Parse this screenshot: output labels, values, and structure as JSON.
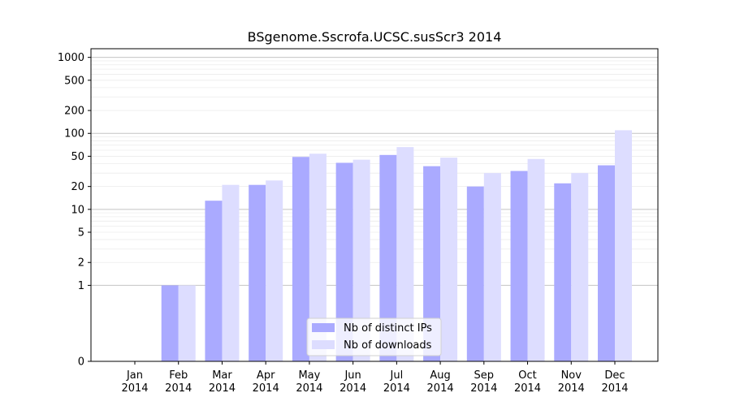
{
  "chart_data": {
    "type": "bar",
    "title": "BSgenome.Sscrofa.UCSC.susScr3 2014",
    "xlabel": "",
    "ylabel": "",
    "y_scale": "symlog",
    "ylim": [
      0,
      1300
    ],
    "y_ticks": [
      0,
      1,
      2,
      5,
      10,
      20,
      50,
      100,
      200,
      500,
      1000
    ],
    "categories": [
      [
        "Jan",
        "2014"
      ],
      [
        "Feb",
        "2014"
      ],
      [
        "Mar",
        "2014"
      ],
      [
        "Apr",
        "2014"
      ],
      [
        "May",
        "2014"
      ],
      [
        "Jun",
        "2014"
      ],
      [
        "Jul",
        "2014"
      ],
      [
        "Aug",
        "2014"
      ],
      [
        "Sep",
        "2014"
      ],
      [
        "Oct",
        "2014"
      ],
      [
        "Nov",
        "2014"
      ],
      [
        "Dec",
        "2014"
      ]
    ],
    "series": [
      {
        "name": "Nb of distinct IPs",
        "color": "#aaaaff",
        "values": [
          0,
          1,
          13,
          21,
          49,
          41,
          52,
          37,
          20,
          32,
          22,
          38
        ]
      },
      {
        "name": "Nb of downloads",
        "color": "#ddddff",
        "values": [
          0,
          1,
          21,
          24,
          54,
          45,
          66,
          48,
          30,
          46,
          30,
          110
        ]
      }
    ],
    "grid": true,
    "legend_position": "bottom-center"
  }
}
